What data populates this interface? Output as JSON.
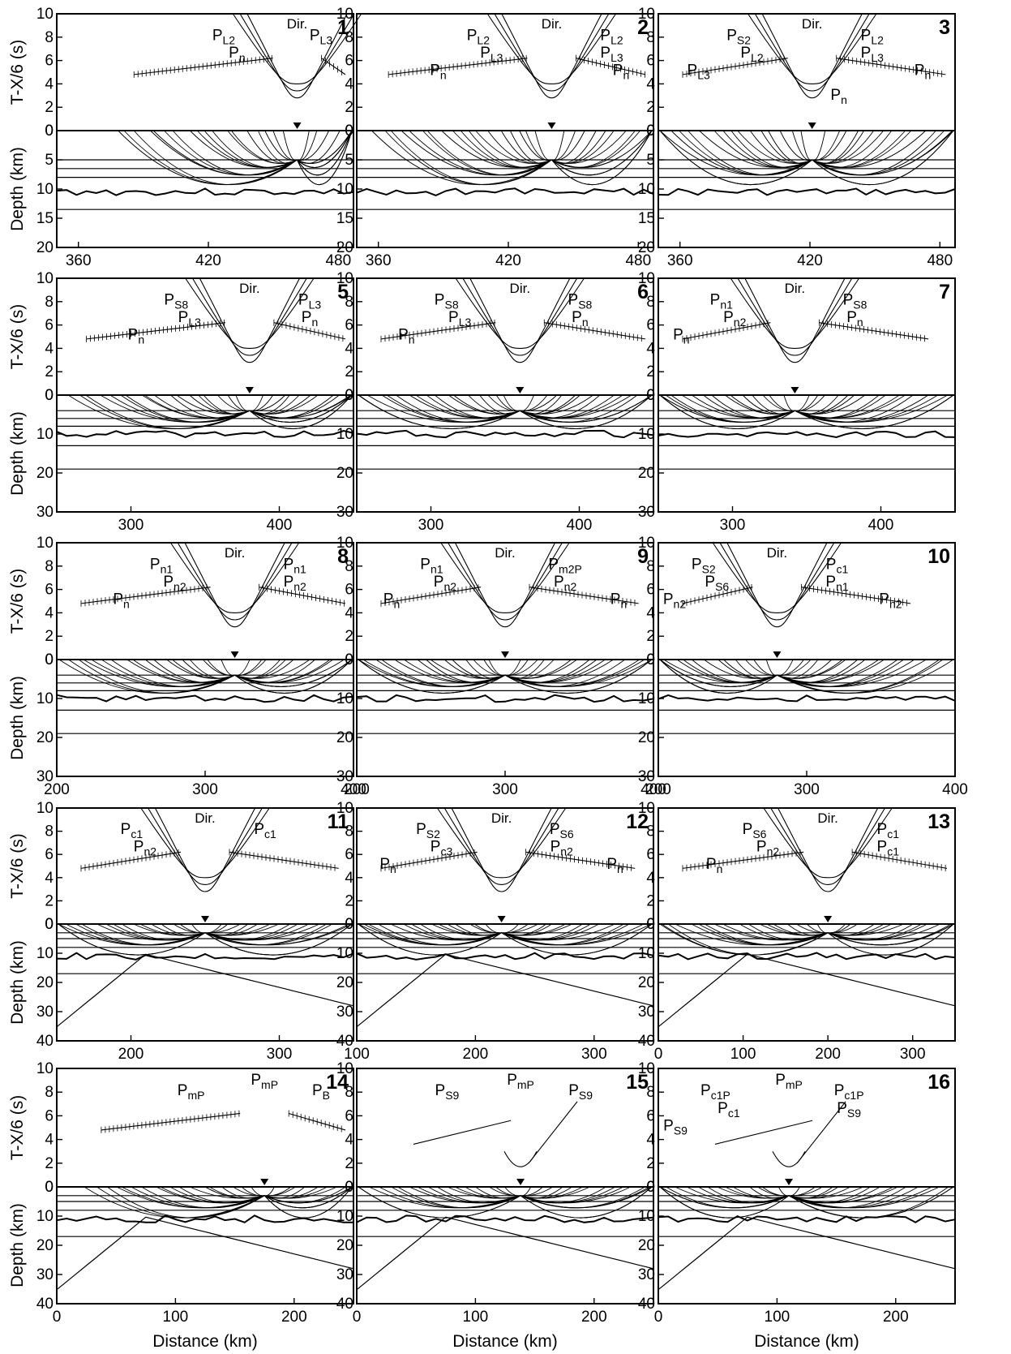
{
  "figure": {
    "y_label_time": "T-X/6 (s)",
    "y_label_depth": "Depth (km)",
    "x_label": "Distance (km)"
  },
  "chart_data": [
    {
      "type": "line",
      "panel": "1",
      "xlim": [
        350,
        487
      ],
      "xticks": [
        360,
        420,
        480
      ],
      "time_ylim": [
        0,
        10
      ],
      "time_ticks": [
        0,
        2,
        4,
        6,
        8,
        10
      ],
      "depth_ylim": [
        20,
        0
      ],
      "depth_ticks": [
        0,
        5,
        10,
        15,
        20
      ],
      "shot_x": 461,
      "phases": [
        [
          "Dir.",
          ""
        ],
        [
          "P",
          "L2"
        ],
        [
          "P",
          "L3"
        ],
        [
          "P",
          "n"
        ]
      ]
    },
    {
      "type": "line",
      "panel": "2",
      "xlim": [
        350,
        487
      ],
      "xticks": [
        360,
        420,
        480
      ],
      "time_ylim": [
        0,
        10
      ],
      "time_ticks": [
        0,
        2,
        4,
        6,
        8,
        10
      ],
      "depth_ylim": [
        20,
        0
      ],
      "depth_ticks": [
        0,
        5,
        10,
        15,
        20
      ],
      "shot_x": 440,
      "phases": [
        [
          "Dir.",
          ""
        ],
        [
          "P",
          "L2"
        ],
        [
          "P",
          "L2"
        ],
        [
          "P",
          "L3"
        ],
        [
          "P",
          "L3"
        ],
        [
          "P",
          "n"
        ],
        [
          "P",
          "n"
        ]
      ]
    },
    {
      "type": "line",
      "panel": "3",
      "xlim": [
        350,
        487
      ],
      "xticks": [
        360,
        420,
        480
      ],
      "time_ylim": [
        0,
        10
      ],
      "time_ticks": [
        0,
        2,
        4,
        6,
        8,
        10
      ],
      "depth_ylim": [
        20,
        0
      ],
      "depth_ticks": [
        0,
        5,
        10,
        15,
        20
      ],
      "shot_x": 421,
      "phases": [
        [
          "Dir.",
          ""
        ],
        [
          "P",
          "S2"
        ],
        [
          "P",
          "L2"
        ],
        [
          "P",
          "L2"
        ],
        [
          "P",
          "L3"
        ],
        [
          "P",
          "L3"
        ],
        [
          "P",
          "n"
        ],
        [
          "P",
          "n"
        ]
      ]
    },
    {
      "type": "line",
      "panel": "5",
      "xlim": [
        250,
        450
      ],
      "xticks": [
        300,
        400
      ],
      "time_ylim": [
        0,
        10
      ],
      "time_ticks": [
        0,
        2,
        4,
        6,
        8,
        10
      ],
      "depth_ylim": [
        30,
        0
      ],
      "depth_ticks": [
        0,
        10,
        20,
        30
      ],
      "shot_x": 380,
      "phases": [
        [
          "Dir.",
          ""
        ],
        [
          "P",
          "S8"
        ],
        [
          "P",
          "L3"
        ],
        [
          "P",
          "L3"
        ],
        [
          "P",
          "n"
        ],
        [
          "P",
          "n"
        ]
      ]
    },
    {
      "type": "line",
      "panel": "6",
      "xlim": [
        250,
        450
      ],
      "xticks": [
        300,
        400
      ],
      "time_ylim": [
        0,
        10
      ],
      "time_ticks": [
        0,
        2,
        4,
        6,
        8,
        10
      ],
      "depth_ylim": [
        30,
        0
      ],
      "depth_ticks": [
        0,
        10,
        20,
        30
      ],
      "shot_x": 360,
      "phases": [
        [
          "Dir.",
          ""
        ],
        [
          "P",
          "S8"
        ],
        [
          "P",
          "S8"
        ],
        [
          "P",
          "L3"
        ],
        [
          "P",
          "n"
        ],
        [
          "P",
          "n"
        ]
      ]
    },
    {
      "type": "line",
      "panel": "7",
      "xlim": [
        250,
        450
      ],
      "xticks": [
        300,
        400
      ],
      "time_ylim": [
        0,
        10
      ],
      "time_ticks": [
        0,
        2,
        4,
        6,
        8,
        10
      ],
      "depth_ylim": [
        30,
        0
      ],
      "depth_ticks": [
        0,
        10,
        20,
        30
      ],
      "shot_x": 342,
      "phases": [
        [
          "Dir.",
          ""
        ],
        [
          "P",
          "n1"
        ],
        [
          "P",
          "S8"
        ],
        [
          "P",
          "n2"
        ],
        [
          "P",
          "n"
        ],
        [
          "P",
          "n"
        ]
      ]
    },
    {
      "type": "line",
      "panel": "8",
      "xlim": [
        200,
        400
      ],
      "xticks": [
        200,
        300,
        400
      ],
      "time_ylim": [
        0,
        10
      ],
      "time_ticks": [
        0,
        2,
        4,
        6,
        8,
        10
      ],
      "depth_ylim": [
        30,
        0
      ],
      "depth_ticks": [
        0,
        10,
        20,
        30
      ],
      "shot_x": 320,
      "phases": [
        [
          "Dir.",
          ""
        ],
        [
          "P",
          "n1"
        ],
        [
          "P",
          "n1"
        ],
        [
          "P",
          "n2"
        ],
        [
          "P",
          "n2"
        ],
        [
          "P",
          "n"
        ]
      ]
    },
    {
      "type": "line",
      "panel": "9",
      "xlim": [
        200,
        400
      ],
      "xticks": [
        200,
        300,
        400
      ],
      "time_ylim": [
        0,
        10
      ],
      "time_ticks": [
        0,
        2,
        4,
        6,
        8,
        10
      ],
      "depth_ylim": [
        30,
        0
      ],
      "depth_ticks": [
        0,
        10,
        20,
        30
      ],
      "shot_x": 300,
      "phases": [
        [
          "Dir.",
          ""
        ],
        [
          "P",
          "n1"
        ],
        [
          "P",
          "m2P"
        ],
        [
          "P",
          "n2"
        ],
        [
          "P",
          "n2"
        ],
        [
          "P",
          "n"
        ],
        [
          "P",
          "n"
        ]
      ]
    },
    {
      "type": "line",
      "panel": "10",
      "xlim": [
        200,
        400
      ],
      "xticks": [
        200,
        300,
        400
      ],
      "time_ylim": [
        0,
        10
      ],
      "time_ticks": [
        0,
        2,
        4,
        6,
        8,
        10
      ],
      "depth_ylim": [
        30,
        0
      ],
      "depth_ticks": [
        0,
        10,
        20,
        30
      ],
      "shot_x": 280,
      "phases": [
        [
          "Dir.",
          ""
        ],
        [
          "P",
          "S2"
        ],
        [
          "P",
          "c1"
        ],
        [
          "P",
          "S6"
        ],
        [
          "P",
          "n1"
        ],
        [
          "P",
          "n2"
        ],
        [
          "P",
          "n2"
        ]
      ]
    },
    {
      "type": "line",
      "panel": "11",
      "xlim": [
        150,
        350
      ],
      "xticks": [
        200,
        300
      ],
      "time_ylim": [
        0,
        10
      ],
      "time_ticks": [
        0,
        2,
        4,
        6,
        8,
        10
      ],
      "depth_ylim": [
        40,
        0
      ],
      "depth_ticks": [
        0,
        10,
        20,
        30,
        40
      ],
      "shot_x": 250,
      "phases": [
        [
          "Dir.",
          ""
        ],
        [
          "P",
          "c1"
        ],
        [
          "P",
          "c1"
        ],
        [
          "P",
          "n2"
        ]
      ]
    },
    {
      "type": "line",
      "panel": "12",
      "xlim": [
        100,
        350
      ],
      "xticks": [
        100,
        200,
        300
      ],
      "time_ylim": [
        0,
        10
      ],
      "time_ticks": [
        0,
        2,
        4,
        6,
        8,
        10
      ],
      "depth_ylim": [
        40,
        0
      ],
      "depth_ticks": [
        0,
        10,
        20,
        30,
        40
      ],
      "shot_x": 222,
      "phases": [
        [
          "Dir.",
          ""
        ],
        [
          "P",
          "S2"
        ],
        [
          "P",
          "S6"
        ],
        [
          "P",
          "c3"
        ],
        [
          "P",
          "n2"
        ],
        [
          "P",
          "n"
        ],
        [
          "P",
          "n"
        ]
      ]
    },
    {
      "type": "line",
      "panel": "13",
      "xlim": [
        0,
        350
      ],
      "xticks": [
        0,
        100,
        200,
        300
      ],
      "time_ylim": [
        0,
        10
      ],
      "time_ticks": [
        0,
        2,
        4,
        6,
        8,
        10
      ],
      "depth_ylim": [
        40,
        0
      ],
      "depth_ticks": [
        0,
        10,
        20,
        30,
        40
      ],
      "shot_x": 200,
      "phases": [
        [
          "Dir.",
          ""
        ],
        [
          "P",
          "S6"
        ],
        [
          "P",
          "c1"
        ],
        [
          "P",
          "n2"
        ],
        [
          "P",
          "c1"
        ],
        [
          "P",
          "n"
        ]
      ]
    },
    {
      "type": "line",
      "panel": "14",
      "xlim": [
        0,
        250
      ],
      "xticks": [
        0,
        100,
        200
      ],
      "time_ylim": [
        0,
        10
      ],
      "time_ticks": [
        0,
        2,
        4,
        6,
        8,
        10
      ],
      "depth_ylim": [
        40,
        0
      ],
      "depth_ticks": [
        0,
        10,
        20,
        30,
        40
      ],
      "shot_x": 175,
      "phases": [
        [
          "P",
          "mP"
        ],
        [
          "P",
          "mP"
        ],
        [
          "P",
          "B"
        ]
      ]
    },
    {
      "type": "line",
      "panel": "15",
      "xlim": [
        0,
        250
      ],
      "xticks": [
        0,
        100,
        200
      ],
      "time_ylim": [
        0,
        10
      ],
      "time_ticks": [
        0,
        2,
        4,
        6,
        8,
        10
      ],
      "depth_ylim": [
        40,
        0
      ],
      "depth_ticks": [
        0,
        10,
        20,
        30,
        40
      ],
      "shot_x": 138,
      "phases": [
        [
          "P",
          "mP"
        ],
        [
          "P",
          "S9"
        ],
        [
          "P",
          "S9"
        ]
      ]
    },
    {
      "type": "line",
      "panel": "16",
      "xlim": [
        0,
        250
      ],
      "xticks": [
        0,
        100,
        200
      ],
      "time_ylim": [
        0,
        10
      ],
      "time_ticks": [
        0,
        2,
        4,
        6,
        8,
        10
      ],
      "depth_ylim": [
        40,
        0
      ],
      "depth_ticks": [
        0,
        10,
        20,
        30,
        40
      ],
      "shot_x": 110,
      "phases": [
        [
          "P",
          "mP"
        ],
        [
          "P",
          "c1P"
        ],
        [
          "P",
          "c1P"
        ],
        [
          "P",
          "c1"
        ],
        [
          "P",
          "S9"
        ],
        [
          "P",
          "S9"
        ]
      ]
    }
  ]
}
